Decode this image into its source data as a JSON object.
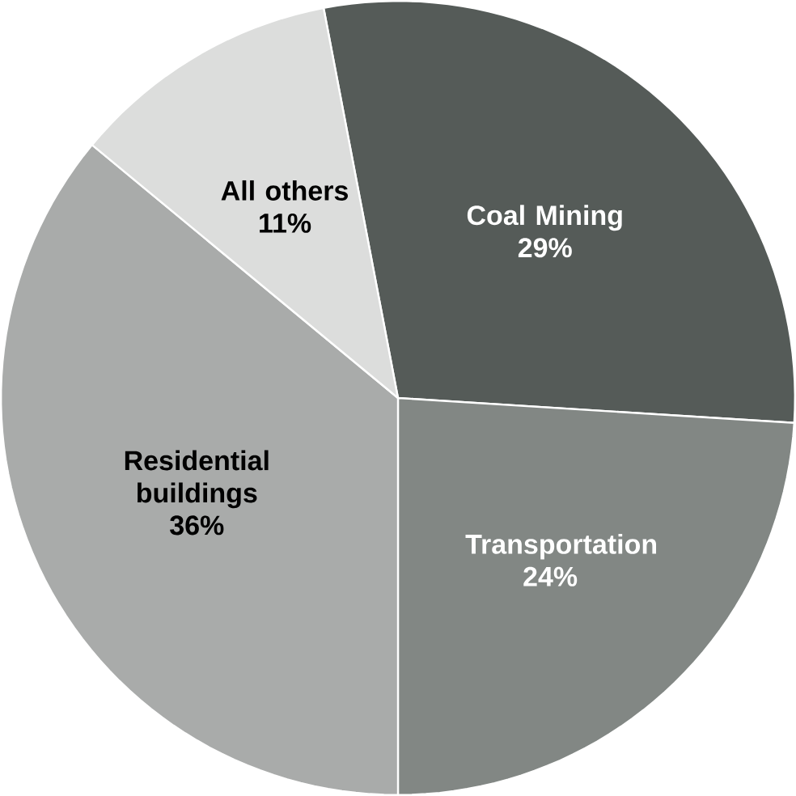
{
  "chart_data": {
    "type": "pie",
    "categories": [
      "Coal Mining",
      "Transportation",
      "Residential buildings",
      "All others"
    ],
    "values": [
      29,
      24,
      36,
      11
    ],
    "value_labels": [
      "29%",
      "24%",
      "36%",
      "11%"
    ],
    "colors": [
      "#555b58",
      "#828784",
      "#a9abaa",
      "#dcdddc"
    ]
  }
}
